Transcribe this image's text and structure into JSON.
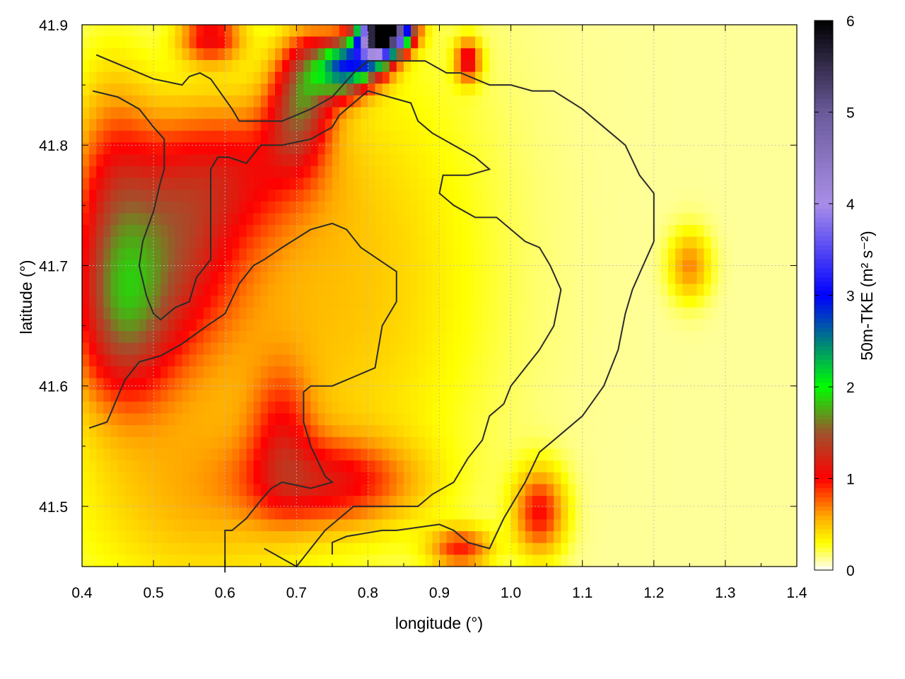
{
  "chart_data": {
    "type": "heatmap",
    "title": "",
    "xlabel": "longitude (°)",
    "ylabel": "latitude (°)",
    "xlim": [
      0.4,
      1.4
    ],
    "ylim": [
      41.45,
      41.9
    ],
    "xticks": [
      "0.4",
      "0.5",
      "0.6",
      "0.7",
      "0.8",
      "0.9",
      "1.0",
      "1.1",
      "1.2",
      "1.3",
      "1.4"
    ],
    "yticks": [
      "41.5",
      "41.6",
      "41.7",
      "41.8",
      "41.9"
    ],
    "grid": true,
    "colorbar": {
      "label": "50m-TKE (m² s⁻²)",
      "range": [
        0,
        6
      ],
      "ticks": [
        "0",
        "1",
        "2",
        "3",
        "4",
        "5",
        "6"
      ],
      "colors": [
        {
          "v": 0.0,
          "c": "#ffffff"
        },
        {
          "v": 0.3,
          "c": "#ffff00"
        },
        {
          "v": 0.6,
          "c": "#ffa500"
        },
        {
          "v": 1.0,
          "c": "#ff0000"
        },
        {
          "v": 1.5,
          "c": "#a0522d"
        },
        {
          "v": 2.0,
          "c": "#00ff00"
        },
        {
          "v": 3.0,
          "c": "#0000ff"
        },
        {
          "v": 4.0,
          "c": "#a98ee8"
        },
        {
          "v": 5.0,
          "c": "#6a5a9a"
        },
        {
          "v": 6.0,
          "c": "#000000"
        }
      ]
    },
    "tke_features": [
      {
        "lon": 0.52,
        "lat": 41.72,
        "sx": 0.07,
        "sy": 0.06,
        "amp": 0.9
      },
      {
        "lon": 0.46,
        "lat": 41.65,
        "sx": 0.05,
        "sy": 0.05,
        "amp": 0.8
      },
      {
        "lon": 0.44,
        "lat": 41.75,
        "sx": 0.04,
        "sy": 0.08,
        "amp": 0.6
      },
      {
        "lon": 0.62,
        "lat": 41.78,
        "sx": 0.08,
        "sy": 0.04,
        "amp": 0.55
      },
      {
        "lon": 0.7,
        "lat": 41.82,
        "sx": 0.03,
        "sy": 0.03,
        "amp": 0.8
      },
      {
        "lon": 0.72,
        "lat": 41.86,
        "sx": 0.03,
        "sy": 0.025,
        "amp": 1.0
      },
      {
        "lon": 0.77,
        "lat": 41.865,
        "sx": 0.025,
        "sy": 0.015,
        "amp": 2.2
      },
      {
        "lon": 0.81,
        "lat": 41.885,
        "sx": 0.02,
        "sy": 0.015,
        "amp": 3.5
      },
      {
        "lon": 0.83,
        "lat": 41.895,
        "sx": 0.02,
        "sy": 0.01,
        "amp": 5.5
      },
      {
        "lon": 0.94,
        "lat": 41.87,
        "sx": 0.012,
        "sy": 0.012,
        "amp": 1.0
      },
      {
        "lon": 0.58,
        "lat": 41.89,
        "sx": 0.03,
        "sy": 0.015,
        "amp": 0.9
      },
      {
        "lon": 0.75,
        "lat": 41.52,
        "sx": 0.08,
        "sy": 0.025,
        "amp": 0.75
      },
      {
        "lon": 0.68,
        "lat": 41.56,
        "sx": 0.03,
        "sy": 0.04,
        "amp": 0.5
      },
      {
        "lon": 1.04,
        "lat": 41.495,
        "sx": 0.025,
        "sy": 0.025,
        "amp": 0.85
      },
      {
        "lon": 0.93,
        "lat": 41.465,
        "sx": 0.03,
        "sy": 0.012,
        "amp": 0.75
      },
      {
        "lon": 1.25,
        "lat": 41.7,
        "sx": 0.02,
        "sy": 0.02,
        "amp": 0.55
      },
      {
        "lon": 0.6,
        "lat": 41.66,
        "sx": 0.15,
        "sy": 0.12,
        "amp": 0.3
      },
      {
        "lon": 0.82,
        "lat": 41.7,
        "sx": 0.12,
        "sy": 0.15,
        "amp": 0.25
      },
      {
        "lon": 0.55,
        "lat": 41.5,
        "sx": 0.12,
        "sy": 0.06,
        "amp": 0.3
      }
    ],
    "contours": [
      [
        [
          0.42,
          41.875
        ],
        [
          0.46,
          41.865
        ],
        [
          0.5,
          41.855
        ],
        [
          0.54,
          41.85
        ],
        [
          0.55,
          41.857
        ],
        [
          0.565,
          41.86
        ],
        [
          0.58,
          41.855
        ],
        [
          0.61,
          41.83
        ],
        [
          0.62,
          41.82
        ],
        [
          0.64,
          41.82
        ],
        [
          0.68,
          41.82
        ],
        [
          0.72,
          41.83
        ],
        [
          0.75,
          41.84
        ],
        [
          0.78,
          41.86
        ],
        [
          0.8,
          41.87
        ],
        [
          0.82,
          41.87
        ],
        [
          0.85,
          41.87
        ],
        [
          0.88,
          41.87
        ],
        [
          0.91,
          41.86
        ],
        [
          0.93,
          41.86
        ],
        [
          0.97,
          41.85
        ],
        [
          1.0,
          41.85
        ],
        [
          1.03,
          41.845
        ],
        [
          1.06,
          41.845
        ],
        [
          1.1,
          41.83
        ],
        [
          1.12,
          41.82
        ],
        [
          1.14,
          41.81
        ],
        [
          1.16,
          41.8
        ],
        [
          1.18,
          41.775
        ],
        [
          1.2,
          41.76
        ],
        [
          1.2,
          41.72
        ],
        [
          1.185,
          41.7
        ],
        [
          1.17,
          41.68
        ],
        [
          1.16,
          41.66
        ],
        [
          1.15,
          41.63
        ],
        [
          1.13,
          41.6
        ],
        [
          1.1,
          41.575
        ],
        [
          1.06,
          41.555
        ],
        [
          1.04,
          41.545
        ],
        [
          1.02,
          41.52
        ],
        [
          0.99,
          41.49
        ],
        [
          0.97,
          41.465
        ],
        [
          0.94,
          41.47
        ],
        [
          0.92,
          41.48
        ],
        [
          0.9,
          41.485
        ],
        [
          0.84,
          41.48
        ],
        [
          0.82,
          41.48
        ],
        [
          0.77,
          41.475
        ],
        [
          0.75,
          41.47
        ],
        [
          0.75,
          41.46
        ]
      ],
      [
        [
          0.41,
          41.565
        ],
        [
          0.435,
          41.57
        ],
        [
          0.46,
          41.605
        ],
        [
          0.48,
          41.62
        ],
        [
          0.51,
          41.625
        ],
        [
          0.54,
          41.635
        ],
        [
          0.575,
          41.65
        ],
        [
          0.6,
          41.66
        ],
        [
          0.62,
          41.685
        ],
        [
          0.64,
          41.7
        ],
        [
          0.655,
          41.705
        ],
        [
          0.68,
          41.715
        ],
        [
          0.72,
          41.73
        ],
        [
          0.75,
          41.735
        ],
        [
          0.77,
          41.73
        ],
        [
          0.79,
          41.715
        ],
        [
          0.84,
          41.695
        ],
        [
          0.84,
          41.67
        ],
        [
          0.82,
          41.65
        ],
        [
          0.81,
          41.615
        ],
        [
          0.79,
          41.61
        ],
        [
          0.75,
          41.6
        ],
        [
          0.72,
          41.6
        ],
        [
          0.71,
          41.595
        ],
        [
          0.71,
          41.57
        ],
        [
          0.72,
          41.55
        ],
        [
          0.74,
          41.525
        ],
        [
          0.75,
          41.52
        ],
        [
          0.72,
          41.515
        ],
        [
          0.68,
          41.52
        ],
        [
          0.665,
          41.515
        ],
        [
          0.65,
          41.505
        ],
        [
          0.63,
          41.49
        ],
        [
          0.61,
          41.48
        ],
        [
          0.6,
          41.48
        ],
        [
          0.6,
          41.445
        ]
      ],
      [
        [
          0.415,
          41.845
        ],
        [
          0.45,
          41.84
        ],
        [
          0.48,
          41.83
        ],
        [
          0.5,
          41.815
        ],
        [
          0.515,
          41.805
        ],
        [
          0.515,
          41.78
        ],
        [
          0.51,
          41.77
        ],
        [
          0.5,
          41.745
        ],
        [
          0.485,
          41.72
        ],
        [
          0.48,
          41.7
        ],
        [
          0.49,
          41.675
        ],
        [
          0.5,
          41.66
        ],
        [
          0.51,
          41.655
        ],
        [
          0.53,
          41.665
        ],
        [
          0.55,
          41.67
        ],
        [
          0.56,
          41.69
        ],
        [
          0.58,
          41.705
        ],
        [
          0.58,
          41.75
        ],
        [
          0.58,
          41.78
        ],
        [
          0.59,
          41.79
        ],
        [
          0.605,
          41.79
        ],
        [
          0.63,
          41.785
        ],
        [
          0.65,
          41.8
        ],
        [
          0.68,
          41.8
        ],
        [
          0.72,
          41.805
        ],
        [
          0.75,
          41.815
        ],
        [
          0.76,
          41.825
        ],
        [
          0.79,
          41.84
        ],
        [
          0.8,
          41.845
        ],
        [
          0.83,
          41.84
        ],
        [
          0.86,
          41.835
        ],
        [
          0.87,
          41.82
        ],
        [
          0.89,
          41.81
        ],
        [
          0.92,
          41.8
        ],
        [
          0.95,
          41.79
        ],
        [
          0.97,
          41.78
        ],
        [
          0.94,
          41.775
        ],
        [
          0.905,
          41.775
        ],
        [
          0.9,
          41.76
        ],
        [
          0.92,
          41.75
        ],
        [
          0.95,
          41.74
        ],
        [
          0.98,
          41.74
        ],
        [
          1.0,
          41.73
        ],
        [
          1.02,
          41.72
        ],
        [
          1.04,
          41.715
        ],
        [
          1.055,
          41.7
        ],
        [
          1.07,
          41.68
        ],
        [
          1.06,
          41.65
        ],
        [
          1.04,
          41.63
        ],
        [
          1.02,
          41.615
        ],
        [
          1.0,
          41.6
        ],
        [
          0.99,
          41.585
        ],
        [
          0.97,
          41.575
        ],
        [
          0.96,
          41.555
        ],
        [
          0.94,
          41.54
        ],
        [
          0.92,
          41.52
        ],
        [
          0.89,
          41.51
        ],
        [
          0.87,
          41.5
        ],
        [
          0.845,
          41.5
        ],
        [
          0.8,
          41.5
        ],
        [
          0.78,
          41.5
        ],
        [
          0.74,
          41.48
        ],
        [
          0.7,
          41.45
        ],
        [
          0.655,
          41.465
        ]
      ]
    ]
  }
}
